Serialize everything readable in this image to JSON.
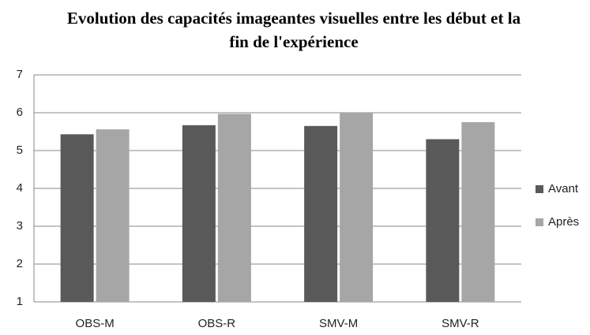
{
  "chart_data": {
    "type": "bar",
    "title": "Evolution des capacités imageantes visuelles entre les début et la fin de l'expérience",
    "categories": [
      "OBS-M",
      "OBS-R",
      "SMV-M",
      "SMV-R"
    ],
    "series": [
      {
        "name": "Avant",
        "color": "#595959",
        "values": [
          5.43,
          5.67,
          5.65,
          5.3
        ]
      },
      {
        "name": "Après",
        "color": "#a6a6a6",
        "values": [
          5.56,
          5.97,
          6.0,
          5.75
        ]
      }
    ],
    "ylim": [
      1,
      7
    ],
    "yticks": [
      1,
      2,
      3,
      4,
      5,
      6,
      7
    ],
    "grid": true,
    "legend": "right"
  }
}
